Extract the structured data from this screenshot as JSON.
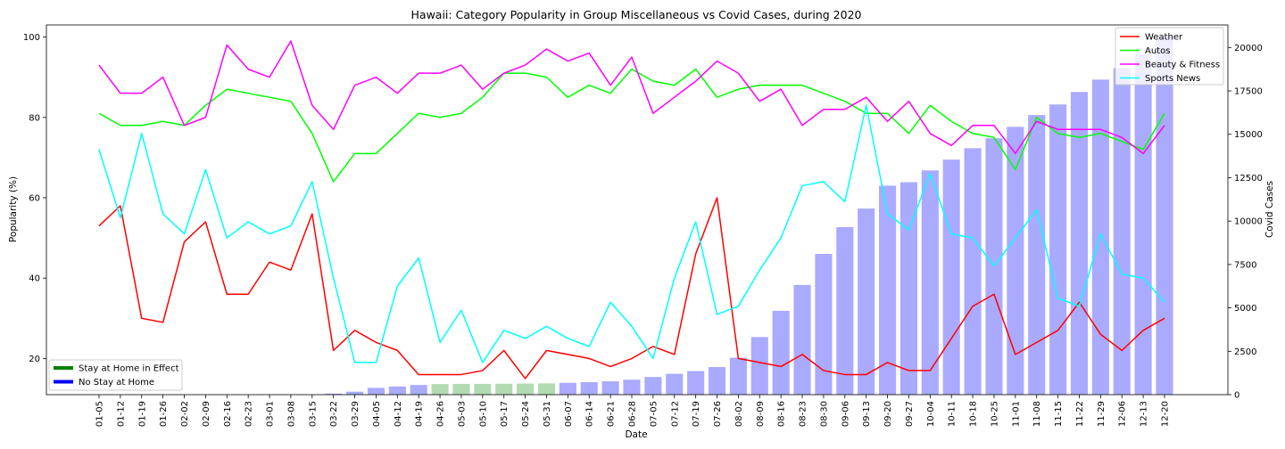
{
  "chart_data": {
    "type": "line",
    "title": "Hawaii: Category Popularity in Group Miscellaneous vs Covid Cases, during 2020",
    "xlabel": "Date",
    "ylabel": "Popularity (%)",
    "y2label": "Covid Cases",
    "ylim": [
      11,
      103
    ],
    "y2lim": [
      0,
      21300
    ],
    "yticks": [
      20,
      40,
      60,
      80,
      100
    ],
    "y2ticks": [
      0,
      2500,
      5000,
      7500,
      10000,
      12500,
      15000,
      17500,
      20000
    ],
    "grid": false,
    "categories": [
      "01-05",
      "01-12",
      "01-19",
      "01-26",
      "02-02",
      "02-09",
      "02-16",
      "02-23",
      "03-01",
      "03-08",
      "03-15",
      "03-22",
      "03-29",
      "04-05",
      "04-12",
      "04-19",
      "04-26",
      "05-03",
      "05-10",
      "05-17",
      "05-24",
      "05-31",
      "06-07",
      "06-14",
      "06-21",
      "06-28",
      "07-05",
      "07-12",
      "07-19",
      "07-26",
      "08-02",
      "08-09",
      "08-16",
      "08-23",
      "08-30",
      "09-06",
      "09-13",
      "09-20",
      "09-27",
      "10-04",
      "10-11",
      "10-18",
      "10-25",
      "11-01",
      "11-08",
      "11-15",
      "11-22",
      "11-29",
      "12-06",
      "12-13",
      "12-20"
    ],
    "series": [
      {
        "name": "Weather",
        "color": "#ff0000",
        "values": [
          53,
          58,
          30,
          29,
          49,
          54,
          36,
          36,
          44,
          42,
          56,
          22,
          27,
          24,
          22,
          16,
          16,
          16,
          17,
          22,
          15,
          22,
          21,
          20,
          18,
          20,
          23,
          21,
          46,
          60,
          20,
          19,
          18,
          21,
          17,
          16,
          16,
          19,
          17,
          17,
          25,
          33,
          36,
          21,
          24,
          27,
          34,
          26,
          22,
          27,
          30
        ]
      },
      {
        "name": "Autos",
        "color": "#00ff00",
        "values": [
          81,
          78,
          78,
          79,
          78,
          83,
          87,
          86,
          85,
          84,
          76,
          64,
          71,
          71,
          76,
          81,
          80,
          81,
          85,
          91,
          91,
          90,
          85,
          88,
          86,
          92,
          89,
          88,
          92,
          85,
          87,
          88,
          88,
          88,
          86,
          84,
          81,
          81,
          76,
          83,
          79,
          76,
          75,
          67,
          80,
          76,
          75,
          76,
          74,
          72,
          81
        ]
      },
      {
        "name": "Beauty & Fitness",
        "color": "#ff00ff",
        "values": [
          93,
          86,
          86,
          90,
          78,
          80,
          98,
          92,
          90,
          99,
          83,
          77,
          88,
          90,
          86,
          91,
          91,
          93,
          87,
          91,
          93,
          97,
          94,
          96,
          88,
          95,
          81,
          85,
          89,
          94,
          91,
          84,
          87,
          78,
          82,
          82,
          85,
          79,
          84,
          76,
          73,
          78,
          78,
          71,
          79,
          77,
          77,
          77,
          75,
          71,
          78
        ]
      },
      {
        "name": "Sports News",
        "color": "#00ffff",
        "values": [
          72,
          55,
          76,
          56,
          51,
          67,
          50,
          54,
          51,
          53,
          64,
          40,
          19,
          19,
          38,
          45,
          24,
          32,
          19,
          27,
          25,
          28,
          25,
          23,
          34,
          28,
          20,
          40,
          54,
          31,
          33,
          42,
          50,
          63,
          64,
          59,
          83,
          56,
          52,
          66,
          51,
          50,
          43,
          50,
          57,
          35,
          33,
          51,
          41,
          40,
          34
        ]
      }
    ],
    "bars": {
      "name": "Covid Cases",
      "values": [
        0,
        0,
        0,
        0,
        0,
        0,
        0,
        0,
        0,
        0,
        0,
        60,
        170,
        390,
        470,
        560,
        610,
        620,
        620,
        630,
        640,
        650,
        680,
        720,
        770,
        860,
        1020,
        1200,
        1360,
        1590,
        2130,
        3320,
        4830,
        6320,
        8110,
        9650,
        10720,
        12040,
        12240,
        12920,
        13540,
        14200,
        14770,
        15430,
        16110,
        16720,
        17440,
        18150,
        18810,
        19620,
        20630
      ],
      "colors_by_week": [
        "#aaaaff",
        "#aaaaff",
        "#aaaaff",
        "#aaaaff",
        "#aaaaff",
        "#aaaaff",
        "#aaaaff",
        "#aaaaff",
        "#aaaaff",
        "#aaaaff",
        "#aaaaff",
        "#aaaaff",
        "#aaaaff",
        "#aaaaff",
        "#aaaaff",
        "#aaaaff",
        "#b2dbb2",
        "#b2dbb2",
        "#b2dbb2",
        "#b2dbb2",
        "#b2dbb2",
        "#b2dbb2",
        "#aaaaff",
        "#aaaaff",
        "#aaaaff",
        "#aaaaff",
        "#aaaaff",
        "#aaaaff",
        "#aaaaff",
        "#aaaaff",
        "#aaaaff",
        "#aaaaff",
        "#aaaaff",
        "#aaaaff",
        "#aaaaff",
        "#aaaaff",
        "#aaaaff",
        "#aaaaff",
        "#aaaaff",
        "#aaaaff",
        "#aaaaff",
        "#aaaaff",
        "#aaaaff",
        "#aaaaff",
        "#aaaaff",
        "#aaaaff",
        "#aaaaff",
        "#aaaaff",
        "#aaaaff",
        "#aaaaff",
        "#aaaaff"
      ]
    },
    "legend_top_right": [
      {
        "label": "Weather",
        "color": "#ff0000"
      },
      {
        "label": "Autos",
        "color": "#00ff00"
      },
      {
        "label": "Beauty & Fitness",
        "color": "#ff00ff"
      },
      {
        "label": "Sports News",
        "color": "#00ffff"
      }
    ],
    "legend_bottom_left": [
      {
        "label": "Stay at Home in Effect",
        "color": "#008000"
      },
      {
        "label": "No Stay at Home",
        "color": "#0000ff"
      }
    ],
    "legend_placement": [
      "top-right",
      "bottom-left"
    ]
  }
}
